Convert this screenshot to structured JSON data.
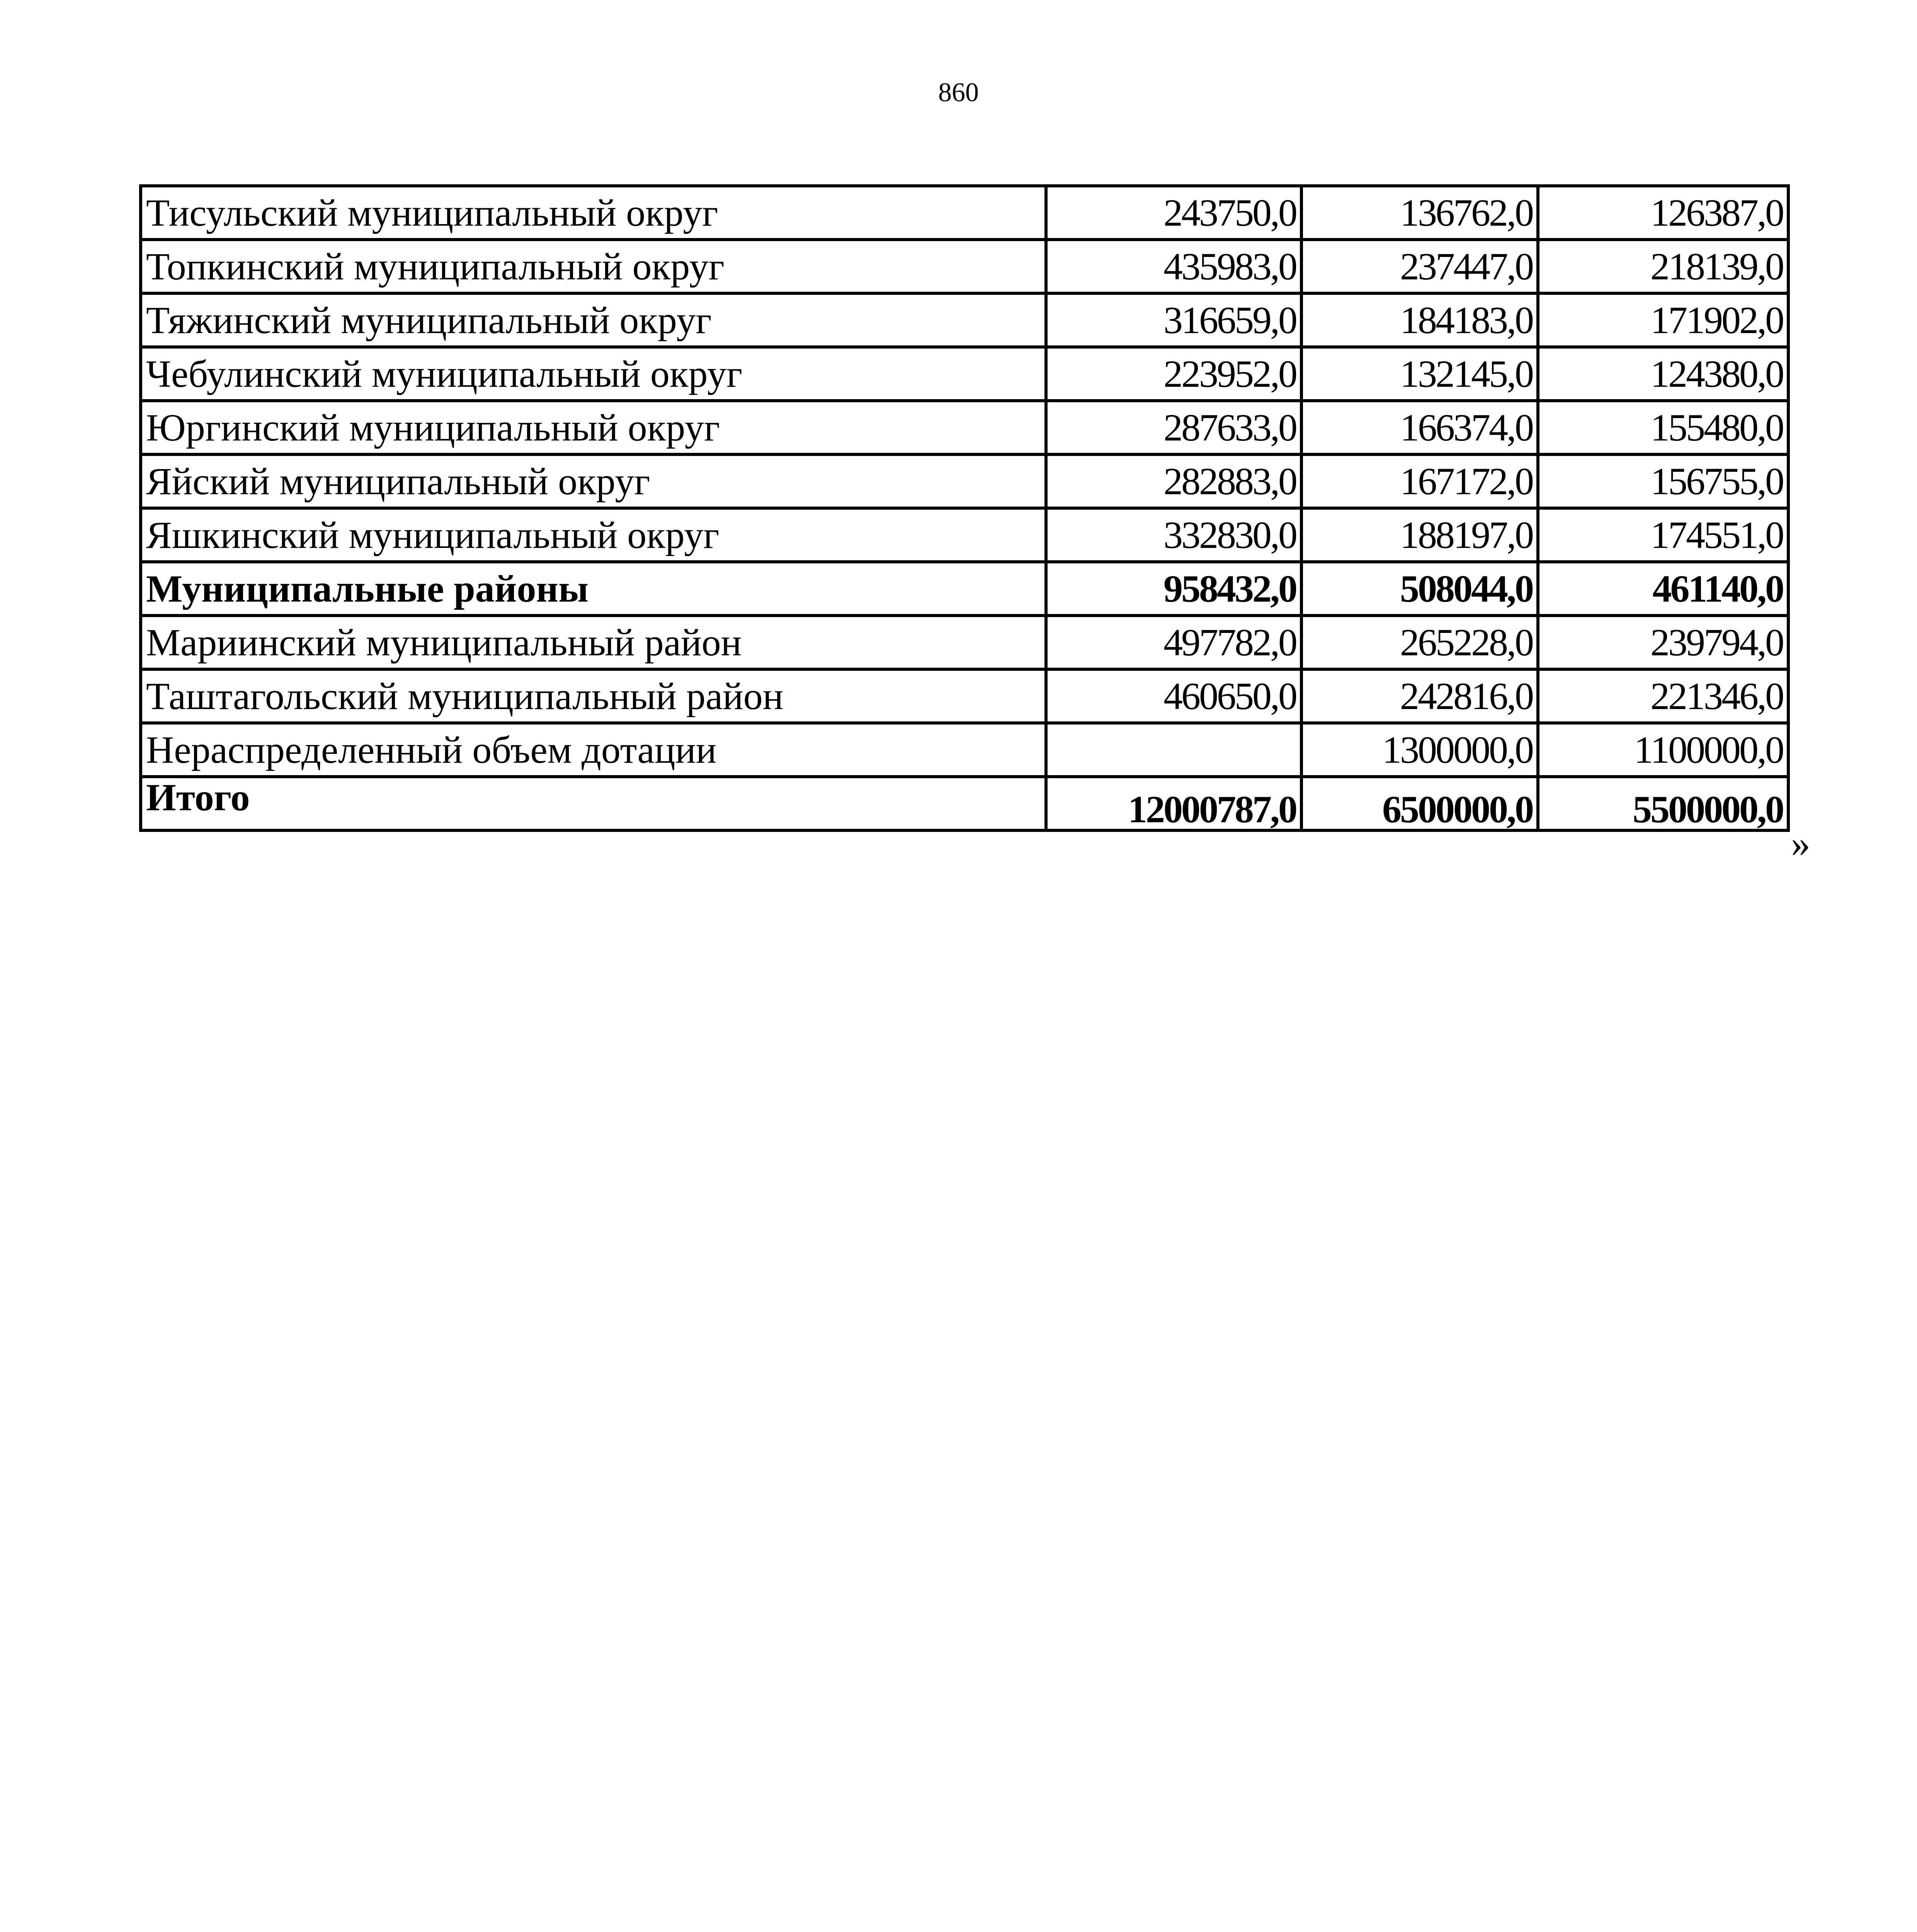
{
  "page_number": "860",
  "table": {
    "rows": [
      {
        "name": "Тисульский муниципальный округ",
        "v1": "243750,0",
        "v2": "136762,0",
        "v3": "126387,0",
        "bold": false
      },
      {
        "name": "Топкинский муниципальный округ",
        "v1": "435983,0",
        "v2": "237447,0",
        "v3": "218139,0",
        "bold": false
      },
      {
        "name": "Тяжинский муниципальный округ",
        "v1": "316659,0",
        "v2": "184183,0",
        "v3": "171902,0",
        "bold": false
      },
      {
        "name": "Чебулинский муниципальный округ",
        "v1": "223952,0",
        "v2": "132145,0",
        "v3": "124380,0",
        "bold": false
      },
      {
        "name": "Юргинский муниципальный округ",
        "v1": "287633,0",
        "v2": "166374,0",
        "v3": "155480,0",
        "bold": false
      },
      {
        "name": "Яйский муниципальный округ",
        "v1": "282883,0",
        "v2": "167172,0",
        "v3": "156755,0",
        "bold": false
      },
      {
        "name": "Яшкинский муниципальный округ",
        "v1": "332830,0",
        "v2": "188197,0",
        "v3": "174551,0",
        "bold": false
      },
      {
        "name": "Муниципальные районы",
        "v1": "958432,0",
        "v2": "508044,0",
        "v3": "461140,0",
        "bold": true
      },
      {
        "name": "Мариинский муниципальный район",
        "v1": "497782,0",
        "v2": "265228,0",
        "v3": "239794,0",
        "bold": false
      },
      {
        "name": "Таштагольский муниципальный район",
        "v1": "460650,0",
        "v2": "242816,0",
        "v3": "221346,0",
        "bold": false
      },
      {
        "name": "Нераспределенный объем дотации",
        "v1": "",
        "v2": "1300000,0",
        "v3": "1100000,0",
        "bold": false
      },
      {
        "name": "Итого",
        "v1": "12000787,0",
        "v2": "6500000,0",
        "v3": "5500000,0",
        "bold": true
      }
    ]
  },
  "closing_quote": "»"
}
